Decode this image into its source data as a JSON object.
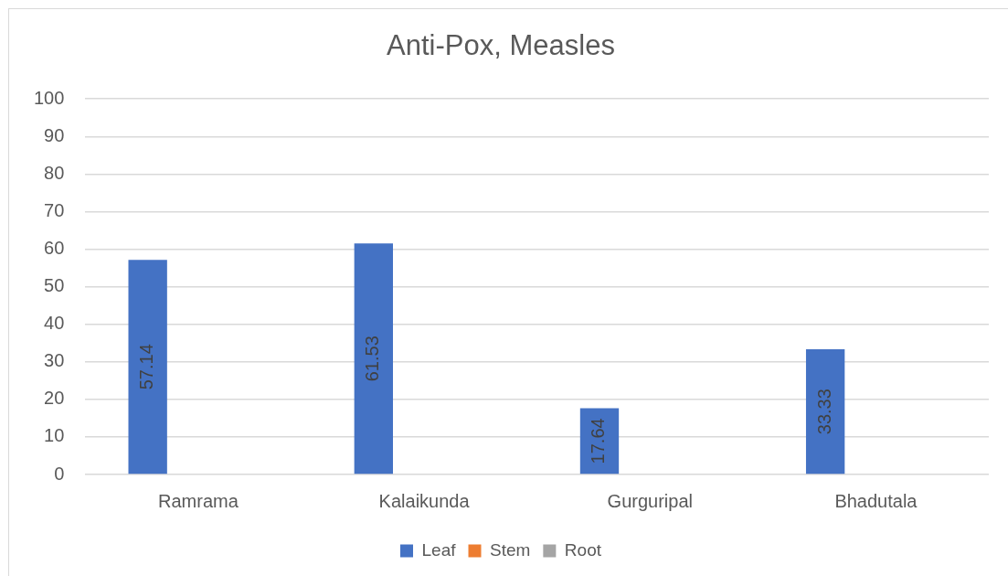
{
  "chart_data": {
    "type": "bar",
    "title": "Anti-Pox, Measles",
    "categories": [
      "Ramrama",
      "Kalaikunda",
      "Gurguripal",
      "Bhadutala"
    ],
    "series": [
      {
        "name": "Leaf",
        "color": "#4472c4",
        "values": [
          57.14,
          61.53,
          17.64,
          33.33
        ]
      },
      {
        "name": "Stem",
        "color": "#ed7d31",
        "values": [
          null,
          null,
          null,
          null
        ]
      },
      {
        "name": "Root",
        "color": "#a5a5a5",
        "values": [
          null,
          null,
          null,
          null
        ]
      }
    ],
    "ylim": [
      0,
      100
    ],
    "yticks": [
      0,
      10,
      20,
      30,
      40,
      50,
      60,
      70,
      80,
      90,
      100
    ],
    "grid": "y",
    "legend": "bottom",
    "data_labels": true
  }
}
